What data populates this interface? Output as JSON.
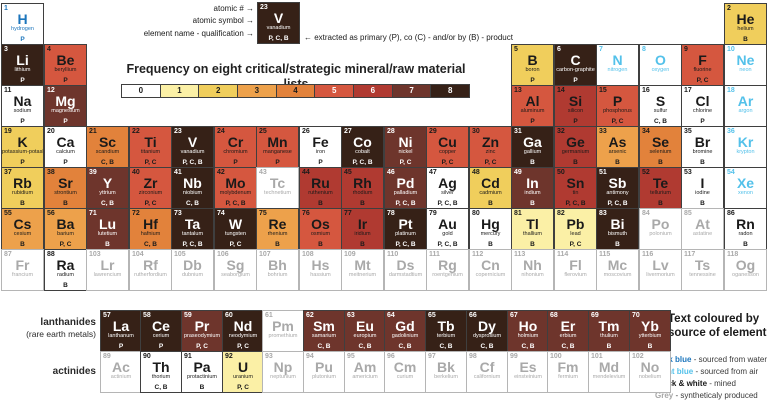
{
  "key": {
    "atomic_number_label": "atomic # →",
    "atomic_symbol_label": "atomic symbol →",
    "element_name_label": "element name - qualification →",
    "extraction_note": "← extracted as primary (P), co (C) - and/or by (B) - product",
    "sample": {
      "n": 23,
      "sym": "V",
      "name": "vanadium",
      "q": "P, C, B",
      "f": 8
    }
  },
  "frequency_legend": {
    "title": "Frequency on eight critical/strategic mineral/raw material lists",
    "values": [
      "0",
      "1",
      "2",
      "3",
      "4",
      "5",
      "6",
      "7",
      "8"
    ],
    "colors": [
      "#ffffff",
      "#fbf0a6",
      "#f0ce5c",
      "#eda14b",
      "#e2823b",
      "#d5573f",
      "#b03a31",
      "#6e352c",
      "#362117"
    ]
  },
  "source_legend": {
    "title": "Text coloured by source of element",
    "entries": [
      {
        "term": "Dark blue",
        "desc": " - sourced from water",
        "color": "#1b75bc"
      },
      {
        "term": "Light blue",
        "desc": " - sourced from air",
        "color": "#53c1ea"
      },
      {
        "term": "Black & white",
        "desc": " - mined",
        "color": "#1a1a1a"
      },
      {
        "term": "Grey",
        "desc": " - syntheticaly produced",
        "color": "#a6a6a6"
      }
    ]
  },
  "series_labels": {
    "lanthanides": "lanthanides",
    "lanthanides_sub": "(rare earth metals)",
    "actinides": "actinides"
  },
  "text_colors": {
    "mined": "#1a1a1a",
    "mined_light": "#ffffff",
    "water": "#1b75bc",
    "air": "#53c1ea",
    "synthetic": "#a9a9a9"
  },
  "elements": [
    {
      "n": 1,
      "sym": "H",
      "name": "hydrogen",
      "g": 1,
      "r": 1,
      "f": 0,
      "q": "P",
      "src": "water"
    },
    {
      "n": 2,
      "sym": "He",
      "name": "helium",
      "g": 18,
      "r": 1,
      "f": 2,
      "q": "B"
    },
    {
      "n": 3,
      "sym": "Li",
      "name": "lithium",
      "g": 1,
      "r": 2,
      "f": 8,
      "q": "P"
    },
    {
      "n": 4,
      "sym": "Be",
      "name": "beryllium",
      "g": 2,
      "r": 2,
      "f": 5,
      "q": "P"
    },
    {
      "n": 5,
      "sym": "B",
      "name": "boron",
      "g": 13,
      "r": 2,
      "f": 2,
      "q": "P"
    },
    {
      "n": 6,
      "sym": "C",
      "name": "carbon-graphite",
      "g": 14,
      "r": 2,
      "f": 8,
      "q": "P"
    },
    {
      "n": 7,
      "sym": "N",
      "name": "nitrogen",
      "g": 15,
      "r": 2,
      "f": 0,
      "q": "",
      "src": "air"
    },
    {
      "n": 8,
      "sym": "O",
      "name": "oxygen",
      "g": 16,
      "r": 2,
      "f": 0,
      "q": "",
      "src": "air"
    },
    {
      "n": 9,
      "sym": "F",
      "name": "fluorine",
      "g": 17,
      "r": 2,
      "f": 5,
      "q": "P, C"
    },
    {
      "n": 10,
      "sym": "Ne",
      "name": "neon",
      "g": 18,
      "r": 2,
      "f": 0,
      "q": "",
      "src": "air"
    },
    {
      "n": 11,
      "sym": "Na",
      "name": "sodium",
      "g": 1,
      "r": 3,
      "f": 0,
      "q": "P"
    },
    {
      "n": 12,
      "sym": "Mg",
      "name": "magnesium",
      "g": 2,
      "r": 3,
      "f": 7,
      "q": "P"
    },
    {
      "n": 13,
      "sym": "Al",
      "name": "aluminum",
      "g": 13,
      "r": 3,
      "f": 5,
      "q": "P"
    },
    {
      "n": 14,
      "sym": "Si",
      "name": "silicon",
      "g": 14,
      "r": 3,
      "f": 6,
      "q": "P"
    },
    {
      "n": 15,
      "sym": "P",
      "name": "phosphorus",
      "g": 15,
      "r": 3,
      "f": 5,
      "q": "P, C"
    },
    {
      "n": 16,
      "sym": "S",
      "name": "sulfur",
      "g": 16,
      "r": 3,
      "f": 0,
      "q": "C, B"
    },
    {
      "n": 17,
      "sym": "Cl",
      "name": "chlorine",
      "g": 17,
      "r": 3,
      "f": 0,
      "q": "P"
    },
    {
      "n": 18,
      "sym": "Ar",
      "name": "argon",
      "g": 18,
      "r": 3,
      "f": 0,
      "q": "",
      "src": "air"
    },
    {
      "n": 19,
      "sym": "K",
      "name": "potassium-potash",
      "g": 1,
      "r": 4,
      "f": 2,
      "q": "P"
    },
    {
      "n": 20,
      "sym": "Ca",
      "name": "calcium",
      "g": 2,
      "r": 4,
      "f": 0,
      "q": "P"
    },
    {
      "n": 21,
      "sym": "Sc",
      "name": "scandium",
      "g": 3,
      "r": 4,
      "f": 4,
      "q": "C, B"
    },
    {
      "n": 22,
      "sym": "Ti",
      "name": "titanium",
      "g": 4,
      "r": 4,
      "f": 5,
      "q": "P, C"
    },
    {
      "n": 23,
      "sym": "V",
      "name": "vanadium",
      "g": 5,
      "r": 4,
      "f": 8,
      "q": "P, C, B"
    },
    {
      "n": 24,
      "sym": "Cr",
      "name": "chromium",
      "g": 6,
      "r": 4,
      "f": 5,
      "q": "P"
    },
    {
      "n": 25,
      "sym": "Mn",
      "name": "manganese",
      "g": 7,
      "r": 4,
      "f": 5,
      "q": "P"
    },
    {
      "n": 26,
      "sym": "Fe",
      "name": "iron",
      "g": 8,
      "r": 4,
      "f": 0,
      "q": "P"
    },
    {
      "n": 27,
      "sym": "Co",
      "name": "cobalt",
      "g": 9,
      "r": 4,
      "f": 8,
      "q": "P, C, B"
    },
    {
      "n": 28,
      "sym": "Ni",
      "name": "nickel",
      "g": 10,
      "r": 4,
      "f": 7,
      "q": "P, C"
    },
    {
      "n": 29,
      "sym": "Cu",
      "name": "copper",
      "g": 11,
      "r": 4,
      "f": 5,
      "q": "P, C"
    },
    {
      "n": 30,
      "sym": "Zn",
      "name": "zinc",
      "g": 12,
      "r": 4,
      "f": 5,
      "q": "P, C"
    },
    {
      "n": 31,
      "sym": "Ga",
      "name": "gallium",
      "g": 13,
      "r": 4,
      "f": 8,
      "q": "B"
    },
    {
      "n": 32,
      "sym": "Ge",
      "name": "germanium",
      "g": 14,
      "r": 4,
      "f": 6,
      "q": "B"
    },
    {
      "n": 33,
      "sym": "As",
      "name": "arsenic",
      "g": 15,
      "r": 4,
      "f": 3,
      "q": "B"
    },
    {
      "n": 34,
      "sym": "Se",
      "name": "selenium",
      "g": 16,
      "r": 4,
      "f": 4,
      "q": "B"
    },
    {
      "n": 35,
      "sym": "Br",
      "name": "bromine",
      "g": 17,
      "r": 4,
      "f": 0,
      "q": "B"
    },
    {
      "n": 36,
      "sym": "Kr",
      "name": "krypton",
      "g": 18,
      "r": 4,
      "f": 0,
      "q": "",
      "src": "air"
    },
    {
      "n": 37,
      "sym": "Rb",
      "name": "rubidium",
      "g": 1,
      "r": 5,
      "f": 2,
      "q": "B"
    },
    {
      "n": 38,
      "sym": "Sr",
      "name": "strontium",
      "g": 2,
      "r": 5,
      "f": 4,
      "q": "B"
    },
    {
      "n": 39,
      "sym": "Y",
      "name": "yttrium",
      "g": 3,
      "r": 5,
      "f": 7,
      "q": "C, B"
    },
    {
      "n": 40,
      "sym": "Zr",
      "name": "zirconium",
      "g": 4,
      "r": 5,
      "f": 5,
      "q": "P, C"
    },
    {
      "n": 41,
      "sym": "Nb",
      "name": "niobium",
      "g": 5,
      "r": 5,
      "f": 8,
      "q": "C, B"
    },
    {
      "n": 42,
      "sym": "Mo",
      "name": "molybdenum",
      "g": 6,
      "r": 5,
      "f": 5,
      "q": "P, C, B"
    },
    {
      "n": 43,
      "sym": "Tc",
      "name": "technetium",
      "g": 7,
      "r": 5,
      "f": 0,
      "q": "",
      "src": "synthetic"
    },
    {
      "n": 44,
      "sym": "Ru",
      "name": "ruthenium",
      "g": 8,
      "r": 5,
      "f": 6,
      "q": "B"
    },
    {
      "n": 45,
      "sym": "Rh",
      "name": "rhodium",
      "g": 9,
      "r": 5,
      "f": 6,
      "q": "B"
    },
    {
      "n": 46,
      "sym": "Pd",
      "name": "palladium",
      "g": 10,
      "r": 5,
      "f": 7,
      "q": "P, C, B"
    },
    {
      "n": 47,
      "sym": "Ag",
      "name": "silver",
      "g": 11,
      "r": 5,
      "f": 0,
      "q": "P, C, B"
    },
    {
      "n": 48,
      "sym": "Cd",
      "name": "cadmium",
      "g": 12,
      "r": 5,
      "f": 2,
      "q": "B"
    },
    {
      "n": 49,
      "sym": "In",
      "name": "indium",
      "g": 13,
      "r": 5,
      "f": 7,
      "q": "B"
    },
    {
      "n": 50,
      "sym": "Sn",
      "name": "tin",
      "g": 14,
      "r": 5,
      "f": 6,
      "q": "P, C, B"
    },
    {
      "n": 51,
      "sym": "Sb",
      "name": "antimony",
      "g": 15,
      "r": 5,
      "f": 8,
      "q": "P, C, B"
    },
    {
      "n": 52,
      "sym": "Te",
      "name": "tellurium",
      "g": 16,
      "r": 5,
      "f": 6,
      "q": "B"
    },
    {
      "n": 53,
      "sym": "I",
      "name": "iodine",
      "g": 17,
      "r": 5,
      "f": 0,
      "q": "B"
    },
    {
      "n": 54,
      "sym": "Xe",
      "name": "xenon",
      "g": 18,
      "r": 5,
      "f": 0,
      "q": "",
      "src": "air"
    },
    {
      "n": 55,
      "sym": "Cs",
      "name": "cesium",
      "g": 1,
      "r": 6,
      "f": 3,
      "q": "B"
    },
    {
      "n": 56,
      "sym": "Ba",
      "name": "barium",
      "g": 2,
      "r": 6,
      "f": 3,
      "q": "P, C"
    },
    {
      "n": 71,
      "sym": "Lu",
      "name": "lutetium",
      "g": 3,
      "r": 6,
      "f": 7,
      "q": "B"
    },
    {
      "n": 72,
      "sym": "Hf",
      "name": "hafnium",
      "g": 4,
      "r": 6,
      "f": 4,
      "q": "C, B"
    },
    {
      "n": 73,
      "sym": "Ta",
      "name": "tantalum",
      "g": 5,
      "r": 6,
      "f": 8,
      "q": "P, C, B"
    },
    {
      "n": 74,
      "sym": "W",
      "name": "tungsten",
      "g": 6,
      "r": 6,
      "f": 8,
      "q": "P, C"
    },
    {
      "n": 75,
      "sym": "Re",
      "name": "rhenium",
      "g": 7,
      "r": 6,
      "f": 3,
      "q": "B"
    },
    {
      "n": 76,
      "sym": "Os",
      "name": "osmium",
      "g": 8,
      "r": 6,
      "f": 5,
      "q": "B"
    },
    {
      "n": 77,
      "sym": "Ir",
      "name": "iridium",
      "g": 9,
      "r": 6,
      "f": 6,
      "q": "B"
    },
    {
      "n": 78,
      "sym": "Pt",
      "name": "platinum",
      "g": 10,
      "r": 6,
      "f": 8,
      "q": "P, C, B"
    },
    {
      "n": 79,
      "sym": "Au",
      "name": "gold",
      "g": 11,
      "r": 6,
      "f": 0,
      "q": "P, C, B"
    },
    {
      "n": 80,
      "sym": "Hg",
      "name": "mercury",
      "g": 12,
      "r": 6,
      "f": 0,
      "q": "B"
    },
    {
      "n": 81,
      "sym": "Tl",
      "name": "thallium",
      "g": 13,
      "r": 6,
      "f": 1,
      "q": "B"
    },
    {
      "n": 82,
      "sym": "Pb",
      "name": "lead",
      "g": 14,
      "r": 6,
      "f": 1,
      "q": "P, C"
    },
    {
      "n": 83,
      "sym": "Bi",
      "name": "bismuth",
      "g": 15,
      "r": 6,
      "f": 8,
      "q": "B"
    },
    {
      "n": 84,
      "sym": "Po",
      "name": "polonium",
      "g": 16,
      "r": 6,
      "f": 0,
      "q": "",
      "src": "synthetic"
    },
    {
      "n": 85,
      "sym": "At",
      "name": "astatine",
      "g": 17,
      "r": 6,
      "f": 0,
      "q": "",
      "src": "synthetic"
    },
    {
      "n": 86,
      "sym": "Rn",
      "name": "radon",
      "g": 18,
      "r": 6,
      "f": 0,
      "q": "B"
    },
    {
      "n": 87,
      "sym": "Fr",
      "name": "francium",
      "g": 1,
      "r": 7,
      "f": 0,
      "q": "",
      "src": "synthetic"
    },
    {
      "n": 88,
      "sym": "Ra",
      "name": "radium",
      "g": 2,
      "r": 7,
      "f": 0,
      "q": "B"
    },
    {
      "n": 103,
      "sym": "Lr",
      "name": "lawrencium",
      "g": 3,
      "r": 7,
      "f": 0,
      "q": "",
      "src": "synthetic"
    },
    {
      "n": 104,
      "sym": "Rf",
      "name": "rutherfordium",
      "g": 4,
      "r": 7,
      "f": 0,
      "q": "",
      "src": "synthetic"
    },
    {
      "n": 105,
      "sym": "Db",
      "name": "dubnium",
      "g": 5,
      "r": 7,
      "f": 0,
      "q": "",
      "src": "synthetic"
    },
    {
      "n": 106,
      "sym": "Sg",
      "name": "seaborgium",
      "g": 6,
      "r": 7,
      "f": 0,
      "q": "",
      "src": "synthetic"
    },
    {
      "n": 107,
      "sym": "Bh",
      "name": "bohrium",
      "g": 7,
      "r": 7,
      "f": 0,
      "q": "",
      "src": "synthetic"
    },
    {
      "n": 108,
      "sym": "Hs",
      "name": "hassium",
      "g": 8,
      "r": 7,
      "f": 0,
      "q": "",
      "src": "synthetic"
    },
    {
      "n": 109,
      "sym": "Mt",
      "name": "meitnerium",
      "g": 9,
      "r": 7,
      "f": 0,
      "q": "",
      "src": "synthetic"
    },
    {
      "n": 110,
      "sym": "Ds",
      "name": "darmstadtium",
      "g": 10,
      "r": 7,
      "f": 0,
      "q": "",
      "src": "synthetic"
    },
    {
      "n": 111,
      "sym": "Rg",
      "name": "roentgenium",
      "g": 11,
      "r": 7,
      "f": 0,
      "q": "",
      "src": "synthetic"
    },
    {
      "n": 112,
      "sym": "Cn",
      "name": "copernicium",
      "g": 12,
      "r": 7,
      "f": 0,
      "q": "",
      "src": "synthetic"
    },
    {
      "n": 113,
      "sym": "Nh",
      "name": "nihonium",
      "g": 13,
      "r": 7,
      "f": 0,
      "q": "",
      "src": "synthetic"
    },
    {
      "n": 114,
      "sym": "Fl",
      "name": "flerovium",
      "g": 14,
      "r": 7,
      "f": 0,
      "q": "",
      "src": "synthetic"
    },
    {
      "n": 115,
      "sym": "Mc",
      "name": "moscovium",
      "g": 15,
      "r": 7,
      "f": 0,
      "q": "",
      "src": "synthetic"
    },
    {
      "n": 116,
      "sym": "Lv",
      "name": "livermorium",
      "g": 16,
      "r": 7,
      "f": 0,
      "q": "",
      "src": "synthetic"
    },
    {
      "n": 117,
      "sym": "Ts",
      "name": "tennessine",
      "g": 17,
      "r": 7,
      "f": 0,
      "q": "",
      "src": "synthetic"
    },
    {
      "n": 118,
      "sym": "Og",
      "name": "oganesson",
      "g": 18,
      "r": 7,
      "f": 0,
      "q": "",
      "src": "synthetic"
    },
    {
      "n": 57,
      "sym": "La",
      "name": "lanthanum",
      "g": 1,
      "r": "L",
      "f": 8,
      "q": "P"
    },
    {
      "n": 58,
      "sym": "Ce",
      "name": "cerium",
      "g": 2,
      "r": "L",
      "f": 8,
      "q": "P"
    },
    {
      "n": 59,
      "sym": "Pr",
      "name": "praseodymium",
      "g": 3,
      "r": "L",
      "f": 7,
      "q": "P, C"
    },
    {
      "n": 60,
      "sym": "Nd",
      "name": "neodymium",
      "g": 4,
      "r": "L",
      "f": 8,
      "q": "P, C"
    },
    {
      "n": 61,
      "sym": "Pm",
      "name": "promethium",
      "g": 5,
      "r": "L",
      "f": 0,
      "q": "",
      "src": "synthetic"
    },
    {
      "n": 62,
      "sym": "Sm",
      "name": "samarium",
      "g": 6,
      "r": "L",
      "f": 7,
      "q": "C, B"
    },
    {
      "n": 63,
      "sym": "Eu",
      "name": "europium",
      "g": 7,
      "r": "L",
      "f": 7,
      "q": "C, B"
    },
    {
      "n": 64,
      "sym": "Gd",
      "name": "gadolinium",
      "g": 8,
      "r": "L",
      "f": 7,
      "q": "C, B"
    },
    {
      "n": 65,
      "sym": "Tb",
      "name": "terbium",
      "g": 9,
      "r": "L",
      "f": 8,
      "q": "C, B"
    },
    {
      "n": 66,
      "sym": "Dy",
      "name": "dysprosium",
      "g": 10,
      "r": "L",
      "f": 8,
      "q": "C, B"
    },
    {
      "n": 67,
      "sym": "Ho",
      "name": "holmium",
      "g": 11,
      "r": "L",
      "f": 7,
      "q": "C, B"
    },
    {
      "n": 68,
      "sym": "Er",
      "name": "erbium",
      "g": 12,
      "r": "L",
      "f": 7,
      "q": "C, B"
    },
    {
      "n": 69,
      "sym": "Tm",
      "name": "thulium",
      "g": 13,
      "r": "L",
      "f": 7,
      "q": "B"
    },
    {
      "n": 70,
      "sym": "Yb",
      "name": "ytterbium",
      "g": 14,
      "r": "L",
      "f": 7,
      "q": "B"
    },
    {
      "n": 89,
      "sym": "Ac",
      "name": "actinium",
      "g": 1,
      "r": "A",
      "f": 0,
      "q": "",
      "src": "synthetic"
    },
    {
      "n": 90,
      "sym": "Th",
      "name": "thorium",
      "g": 2,
      "r": "A",
      "f": 0,
      "q": "C, B"
    },
    {
      "n": 91,
      "sym": "Pa",
      "name": "protactinium",
      "g": 3,
      "r": "A",
      "f": 0,
      "q": "B"
    },
    {
      "n": 92,
      "sym": "U",
      "name": "uranium",
      "g": 4,
      "r": "A",
      "f": 1,
      "q": "P, C"
    },
    {
      "n": 93,
      "sym": "Np",
      "name": "neptunium",
      "g": 5,
      "r": "A",
      "f": 0,
      "q": "",
      "src": "synthetic"
    },
    {
      "n": 94,
      "sym": "Pu",
      "name": "plutonium",
      "g": 6,
      "r": "A",
      "f": 0,
      "q": "",
      "src": "synthetic"
    },
    {
      "n": 95,
      "sym": "Am",
      "name": "americium",
      "g": 7,
      "r": "A",
      "f": 0,
      "q": "",
      "src": "synthetic"
    },
    {
      "n": 96,
      "sym": "Cm",
      "name": "curium",
      "g": 8,
      "r": "A",
      "f": 0,
      "q": "",
      "src": "synthetic"
    },
    {
      "n": 97,
      "sym": "Bk",
      "name": "berkelium",
      "g": 9,
      "r": "A",
      "f": 0,
      "q": "",
      "src": "synthetic"
    },
    {
      "n": 98,
      "sym": "Cf",
      "name": "californium",
      "g": 10,
      "r": "A",
      "f": 0,
      "q": "",
      "src": "synthetic"
    },
    {
      "n": 99,
      "sym": "Es",
      "name": "einsteinium",
      "g": 11,
      "r": "A",
      "f": 0,
      "q": "",
      "src": "synthetic"
    },
    {
      "n": 100,
      "sym": "Fm",
      "name": "fermium",
      "g": 12,
      "r": "A",
      "f": 0,
      "q": "",
      "src": "synthetic"
    },
    {
      "n": 101,
      "sym": "Md",
      "name": "mendelevium",
      "g": 13,
      "r": "A",
      "f": 0,
      "q": "",
      "src": "synthetic"
    },
    {
      "n": 102,
      "sym": "No",
      "name": "nobelium",
      "g": 14,
      "r": "A",
      "f": 0,
      "q": "",
      "src": "synthetic"
    }
  ]
}
